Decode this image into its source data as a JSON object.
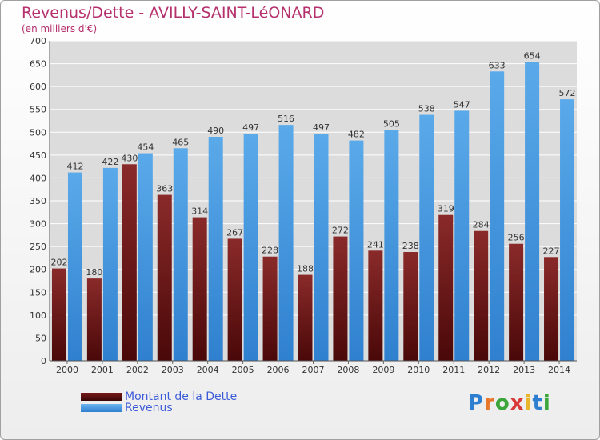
{
  "chart_data": {
    "type": "bar",
    "title": "Revenus/Dette - AVILLY-SAINT-LéONARD",
    "subtitle": "(en milliers d'€)",
    "categories": [
      "2000",
      "2001",
      "2002",
      "2003",
      "2004",
      "2005",
      "2006",
      "2007",
      "2008",
      "2009",
      "2010",
      "2011",
      "2012",
      "2013",
      "2014"
    ],
    "series": [
      {
        "name": "Montant de la Dette",
        "color": "#7a1a1a",
        "values": [
          202,
          180,
          430,
          363,
          314,
          267,
          228,
          188,
          272,
          241,
          238,
          319,
          284,
          256,
          227
        ]
      },
      {
        "name": "Revenus",
        "color": "#4a9fe0",
        "values": [
          412,
          422,
          454,
          465,
          490,
          497,
          516,
          497,
          482,
          505,
          538,
          547,
          633,
          654,
          572
        ]
      }
    ],
    "ylim": [
      0,
      700
    ],
    "yticks": [
      0,
      50,
      100,
      150,
      200,
      250,
      300,
      350,
      400,
      450,
      500,
      550,
      600,
      650,
      700
    ],
    "grid": true,
    "legend_position": "bottom-left"
  },
  "logo": {
    "letters": [
      "P",
      "r",
      "o",
      "x",
      "i",
      "t",
      "i"
    ],
    "colors": [
      "#2f7fd0",
      "#e8762b",
      "#3aa63a",
      "#d93a3a",
      "#e8b52b",
      "#2f7fd0",
      "#3aa63a"
    ]
  }
}
